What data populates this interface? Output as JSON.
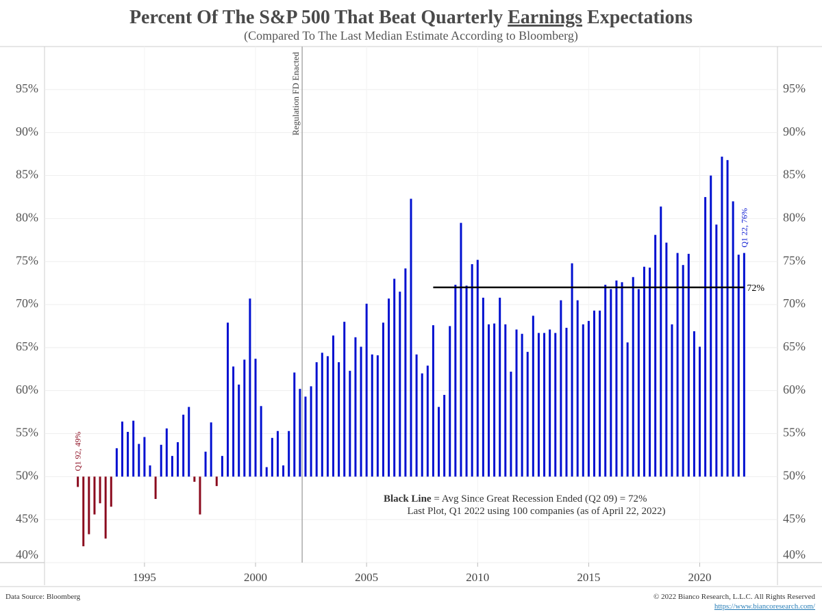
{
  "chart_data": {
    "type": "bar",
    "title": [
      "Percent Of The S&P 500 That Beat Quarterly",
      "Earnings",
      "Expectations"
    ],
    "subtitle": "(Compared To The Last Median Estimate According to Bloomberg)",
    "x": [
      1992,
      1992.25,
      1992.5,
      1992.75,
      1993,
      1993.25,
      1993.5,
      1993.75,
      1994,
      1994.25,
      1994.5,
      1994.75,
      1995,
      1995.25,
      1995.5,
      1995.75,
      1996,
      1996.25,
      1996.5,
      1996.75,
      1997,
      1997.25,
      1997.5,
      1997.75,
      1998,
      1998.25,
      1998.5,
      1998.75,
      1999,
      1999.25,
      1999.5,
      1999.75,
      2000,
      2000.25,
      2000.5,
      2000.75,
      2001,
      2001.25,
      2001.5,
      2001.75,
      2002,
      2002.25,
      2002.5,
      2002.75,
      2003,
      2003.25,
      2003.5,
      2003.75,
      2004,
      2004.25,
      2004.5,
      2004.75,
      2005,
      2005.25,
      2005.5,
      2005.75,
      2006,
      2006.25,
      2006.5,
      2006.75,
      2007,
      2007.25,
      2007.5,
      2007.75,
      2008,
      2008.25,
      2008.5,
      2008.75,
      2009,
      2009.25,
      2009.5,
      2009.75,
      2010,
      2010.25,
      2010.5,
      2010.75,
      2011,
      2011.25,
      2011.5,
      2011.75,
      2012,
      2012.25,
      2012.5,
      2012.75,
      2013,
      2013.25,
      2013.5,
      2013.75,
      2014,
      2014.25,
      2014.5,
      2014.75,
      2015,
      2015.25,
      2015.5,
      2015.75,
      2016,
      2016.25,
      2016.5,
      2016.75,
      2017,
      2017.25,
      2017.5,
      2017.75,
      2018,
      2018.25,
      2018.5,
      2018.75,
      2019,
      2019.25,
      2019.5,
      2019.75,
      2020,
      2020.25,
      2020.5,
      2020.75,
      2021,
      2021.25,
      2021.5,
      2021.75,
      2022
    ],
    "values": [
      48.8,
      41.9,
      43.3,
      45.6,
      46.9,
      42.8,
      46.5,
      53.3,
      56.4,
      55.2,
      56.5,
      53.8,
      54.6,
      51.3,
      47.4,
      53.7,
      55.6,
      52.4,
      54.0,
      57.2,
      58.1,
      49.4,
      45.6,
      52.9,
      56.3,
      48.9,
      52.4,
      67.9,
      62.8,
      60.7,
      63.6,
      70.7,
      63.7,
      58.2,
      51.1,
      54.5,
      55.3,
      51.3,
      55.3,
      62.1,
      60.2,
      59.3,
      60.5,
      63.3,
      64.4,
      64.0,
      66.4,
      63.3,
      68.0,
      62.3,
      66.2,
      65.1,
      70.1,
      64.2,
      64.1,
      67.9,
      70.7,
      73.0,
      71.5,
      74.2,
      82.3,
      64.2,
      62.0,
      62.9,
      67.6,
      58.1,
      59.5,
      67.5,
      72.3,
      79.5,
      72.2,
      74.7,
      75.2,
      70.8,
      67.7,
      67.8,
      70.8,
      67.7,
      62.2,
      67.1,
      66.6,
      64.5,
      68.7,
      66.7,
      66.7,
      67.1,
      66.7,
      70.5,
      67.3,
      74.8,
      70.5,
      67.7,
      68.1,
      69.3,
      69.3,
      72.3,
      71.8,
      72.8,
      72.6,
      65.6,
      73.2,
      71.8,
      74.4,
      74.3,
      78.1,
      81.4,
      77.2,
      67.7,
      76.0,
      74.6,
      75.9,
      66.9,
      65.1,
      82.5,
      85.0,
      79.3,
      87.2,
      86.8,
      82.0,
      75.8,
      76.0
    ],
    "value_labels": [
      "Q1 92, 49%",
      null,
      null,
      null,
      null,
      null,
      null,
      null,
      null,
      null,
      null,
      null,
      null,
      null,
      null,
      null,
      null,
      null,
      null,
      null,
      null,
      null,
      null,
      null,
      null,
      null,
      null,
      null,
      null,
      null,
      null,
      null,
      null,
      null,
      null,
      null,
      null,
      null,
      null,
      null,
      null,
      null,
      null,
      null,
      null,
      null,
      null,
      null,
      null,
      null,
      null,
      null,
      null,
      null,
      null,
      null,
      null,
      null,
      null,
      null,
      null,
      null,
      null,
      null,
      null,
      null,
      null,
      null,
      null,
      null,
      null,
      null,
      null,
      null,
      null,
      null,
      null,
      null,
      null,
      null,
      null,
      null,
      null,
      null,
      null,
      null,
      null,
      null,
      null,
      null,
      null,
      null,
      null,
      null,
      null,
      null,
      null,
      null,
      null,
      null,
      null,
      null,
      null,
      null,
      null,
      null,
      null,
      null,
      null,
      null,
      null,
      null,
      null,
      null,
      null,
      null,
      null,
      null,
      null,
      null,
      "Q1 22, 76%"
    ],
    "baseline": 50,
    "color_above": "#0010d0",
    "color_below": "#8b0a1e",
    "xlim": [
      1990.5,
      2023.5
    ],
    "xticks": [
      1995,
      2000,
      2005,
      2010,
      2015,
      2020
    ],
    "ylim": [
      40,
      100
    ],
    "yticks": [
      {
        "value": 40,
        "label": "40%"
      },
      {
        "value": 45,
        "label": "45%"
      },
      {
        "value": 50,
        "label": "50%"
      },
      {
        "value": 55,
        "label": "55%"
      },
      {
        "value": 60,
        "label": "60%"
      },
      {
        "value": 65,
        "label": "65%"
      },
      {
        "value": 70,
        "label": "70%"
      },
      {
        "value": 75,
        "label": "75%"
      },
      {
        "value": 80,
        "label": "80%"
      },
      {
        "value": 85,
        "label": "85%"
      },
      {
        "value": 90,
        "label": "90%"
      },
      {
        "value": 95,
        "label": "95%"
      }
    ],
    "grid": true,
    "avg_line": {
      "value": 72,
      "label": "72%",
      "from": 2008,
      "to": 2022
    },
    "event_line": {
      "x": 2002.1,
      "label": "Regulation FD Enacted"
    },
    "notes": [
      [
        "Black Line",
        "= Avg Since Great Recession Ended (Q2 09) = 72%"
      ],
      "Last Plot, Q1 2022 using 100 companies (as of April 22, 2022)"
    ],
    "source": "Data Source: Bloomberg",
    "copyright": "© 2022 Bianco Research, L.L.C. All Rights Reserved",
    "url": "https://www.biancoresearch.com/"
  }
}
